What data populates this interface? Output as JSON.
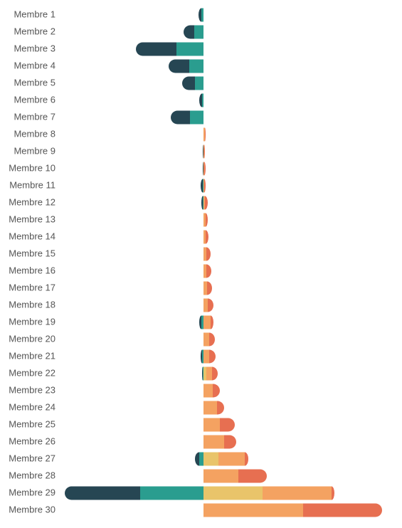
{
  "chart_data": {
    "type": "diverging-bar",
    "categories": [
      "Membre 1",
      "Membre 2",
      "Membre 3",
      "Membre 4",
      "Membre 5",
      "Membre 6",
      "Membre 7",
      "Membre 8",
      "Membre 9",
      "Membre 10",
      "Membre 11",
      "Membre 12",
      "Membre 13",
      "Membre 14",
      "Membre 15",
      "Membre 16",
      "Membre 17",
      "Membre 18",
      "Membre 19",
      "Membre 20",
      "Membre 21",
      "Membre 22",
      "Membre 23",
      "Membre 24",
      "Membre 25",
      "Membre 26",
      "Membre 27",
      "Membre 28",
      "Membre 29",
      "Membre 30"
    ],
    "xlim": [
      -195,
      251
    ],
    "series": [
      {
        "color": "#264653",
        "values": [
          -4,
          -15,
          -57,
          -29,
          -18,
          -4,
          -27,
          0,
          -1,
          -1,
          -3,
          -2,
          0,
          0,
          0,
          0,
          0,
          0,
          -3,
          0,
          -2,
          -1,
          0,
          0,
          0,
          0,
          -6,
          0,
          -106,
          0
        ]
      },
      {
        "color": "#2a9d8f",
        "values": [
          -3,
          -13,
          -38,
          -20,
          -12,
          -2,
          -19,
          0,
          0,
          0,
          -1,
          -1,
          0,
          0,
          0,
          0,
          0,
          0,
          -3,
          0,
          -2,
          -1,
          0,
          0,
          0,
          0,
          -6,
          0,
          -89,
          0
        ]
      },
      {
        "color": "#e9c46a",
        "values": [
          0,
          0,
          0,
          0,
          0,
          0,
          0,
          0,
          0,
          0,
          0,
          0,
          0,
          0,
          0,
          0,
          0,
          0,
          0,
          0,
          0,
          4,
          0,
          0,
          0,
          0,
          21,
          0,
          83,
          0
        ]
      },
      {
        "color": "#f4a261",
        "values": [
          0,
          0,
          0,
          0,
          0,
          0,
          0,
          2,
          1,
          1,
          1,
          2,
          3,
          3,
          4,
          4,
          5,
          6,
          10,
          8,
          8,
          8,
          13,
          19,
          23,
          29,
          37,
          49,
          97,
          140
        ]
      },
      {
        "color": "#e76f51",
        "values": [
          0,
          0,
          0,
          0,
          0,
          0,
          0,
          1,
          1,
          2,
          2,
          4,
          3,
          4,
          6,
          7,
          7,
          8,
          4,
          8,
          9,
          8,
          10,
          10,
          21,
          17,
          5,
          40,
          4,
          111
        ]
      }
    ]
  }
}
